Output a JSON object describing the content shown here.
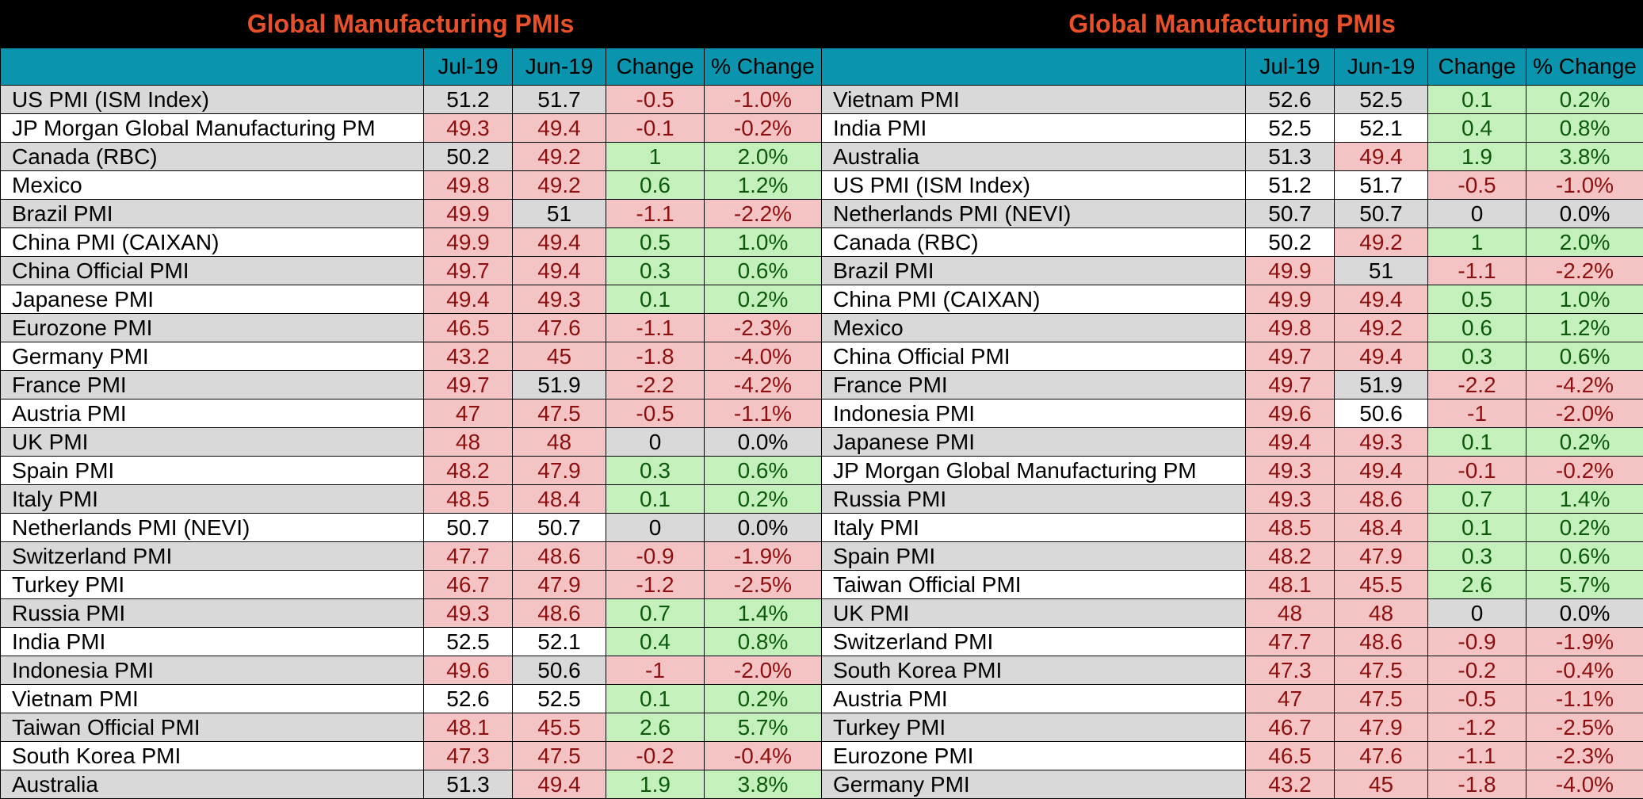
{
  "colors": {
    "title_text": "#e8502a",
    "header_bg": "#0a94ad",
    "negative": "#f4c4c4",
    "positive": "#c4f0bc"
  },
  "chart_data": [
    {
      "type": "table",
      "title": "Global Manufacturing PMIs",
      "columns": [
        "",
        "Jul-19",
        "Jun-19",
        "Change",
        "% Change"
      ],
      "rows": [
        {
          "name": "US PMI (ISM Index)",
          "jul": "51.2",
          "jun": "51.7",
          "chg": "-0.5",
          "pct": "-1.0%",
          "c": [
            "gry",
            "gry",
            "red",
            "red"
          ]
        },
        {
          "name": "JP Morgan Global Manufacturing PM",
          "jul": "49.3",
          "jun": "49.4",
          "chg": "-0.1",
          "pct": "-0.2%",
          "c": [
            "red",
            "red",
            "red",
            "red"
          ]
        },
        {
          "name": "Canada (RBC)",
          "jul": "50.2",
          "jun": "49.2",
          "chg": "1",
          "pct": "2.0%",
          "c": [
            "gry",
            "red",
            "green",
            "green"
          ]
        },
        {
          "name": "Mexico",
          "jul": "49.8",
          "jun": "49.2",
          "chg": "0.6",
          "pct": "1.2%",
          "c": [
            "red",
            "red",
            "green",
            "green"
          ]
        },
        {
          "name": "Brazil PMI",
          "jul": "49.9",
          "jun": "51",
          "chg": "-1.1",
          "pct": "-2.2%",
          "c": [
            "red",
            "gry",
            "red",
            "red"
          ]
        },
        {
          "name": "China PMI (CAIXAN)",
          "jul": "49.9",
          "jun": "49.4",
          "chg": "0.5",
          "pct": "1.0%",
          "c": [
            "red",
            "red",
            "green",
            "green"
          ]
        },
        {
          "name": "China Official PMI",
          "jul": "49.7",
          "jun": "49.4",
          "chg": "0.3",
          "pct": "0.6%",
          "c": [
            "red",
            "red",
            "green",
            "green"
          ]
        },
        {
          "name": "Japanese PMI",
          "jul": "49.4",
          "jun": "49.3",
          "chg": "0.1",
          "pct": "0.2%",
          "c": [
            "red",
            "red",
            "green",
            "green"
          ]
        },
        {
          "name": "Eurozone PMI",
          "jul": "46.5",
          "jun": "47.6",
          "chg": "-1.1",
          "pct": "-2.3%",
          "c": [
            "red",
            "red",
            "red",
            "red"
          ]
        },
        {
          "name": "Germany PMI",
          "jul": "43.2",
          "jun": "45",
          "chg": "-1.8",
          "pct": "-4.0%",
          "c": [
            "red",
            "red",
            "red",
            "red"
          ]
        },
        {
          "name": "France PMI",
          "jul": "49.7",
          "jun": "51.9",
          "chg": "-2.2",
          "pct": "-4.2%",
          "c": [
            "red",
            "gry",
            "red",
            "red"
          ]
        },
        {
          "name": "Austria PMI",
          "jul": "47",
          "jun": "47.5",
          "chg": "-0.5",
          "pct": "-1.1%",
          "c": [
            "red",
            "red",
            "red",
            "red"
          ]
        },
        {
          "name": "UK PMI",
          "jul": "48",
          "jun": "48",
          "chg": "0",
          "pct": "0.0%",
          "c": [
            "red",
            "red",
            "gry",
            "gry"
          ]
        },
        {
          "name": "Spain PMI",
          "jul": "48.2",
          "jun": "47.9",
          "chg": "0.3",
          "pct": "0.6%",
          "c": [
            "red",
            "red",
            "green",
            "green"
          ]
        },
        {
          "name": "Italy PMI",
          "jul": "48.5",
          "jun": "48.4",
          "chg": "0.1",
          "pct": "0.2%",
          "c": [
            "red",
            "red",
            "green",
            "green"
          ]
        },
        {
          "name": "Netherlands PMI (NEVI)",
          "jul": "50.7",
          "jun": "50.7",
          "chg": "0",
          "pct": "0.0%",
          "c": [
            "wht",
            "wht",
            "gry",
            "gry"
          ]
        },
        {
          "name": "Switzerland PMI",
          "jul": "47.7",
          "jun": "48.6",
          "chg": "-0.9",
          "pct": "-1.9%",
          "c": [
            "red",
            "red",
            "red",
            "red"
          ]
        },
        {
          "name": "Turkey PMI",
          "jul": "46.7",
          "jun": "47.9",
          "chg": "-1.2",
          "pct": "-2.5%",
          "c": [
            "red",
            "red",
            "red",
            "red"
          ]
        },
        {
          "name": "Russia PMI",
          "jul": "49.3",
          "jun": "48.6",
          "chg": "0.7",
          "pct": "1.4%",
          "c": [
            "red",
            "red",
            "green",
            "green"
          ]
        },
        {
          "name": "India PMI",
          "jul": "52.5",
          "jun": "52.1",
          "chg": "0.4",
          "pct": "0.8%",
          "c": [
            "wht",
            "wht",
            "green",
            "green"
          ]
        },
        {
          "name": "Indonesia PMI",
          "jul": "49.6",
          "jun": "50.6",
          "chg": "-1",
          "pct": "-2.0%",
          "c": [
            "red",
            "gry",
            "red",
            "red"
          ]
        },
        {
          "name": "Vietnam PMI",
          "jul": "52.6",
          "jun": "52.5",
          "chg": "0.1",
          "pct": "0.2%",
          "c": [
            "wht",
            "wht",
            "green",
            "green"
          ]
        },
        {
          "name": "Taiwan Official PMI",
          "jul": "48.1",
          "jun": "45.5",
          "chg": "2.6",
          "pct": "5.7%",
          "c": [
            "red",
            "red",
            "green",
            "green"
          ]
        },
        {
          "name": "South Korea PMI",
          "jul": "47.3",
          "jun": "47.5",
          "chg": "-0.2",
          "pct": "-0.4%",
          "c": [
            "red",
            "red",
            "red",
            "red"
          ]
        },
        {
          "name": "Australia",
          "jul": "51.3",
          "jun": "49.4",
          "chg": "1.9",
          "pct": "3.8%",
          "c": [
            "gry",
            "red",
            "green",
            "green"
          ]
        }
      ]
    },
    {
      "type": "table",
      "title": "Global Manufacturing PMIs",
      "columns": [
        "",
        "Jul-19",
        "Jun-19",
        "Change",
        "% Change"
      ],
      "rows": [
        {
          "name": "Vietnam PMI",
          "jul": "52.6",
          "jun": "52.5",
          "chg": "0.1",
          "pct": "0.2%",
          "c": [
            "gry",
            "gry",
            "green",
            "green"
          ]
        },
        {
          "name": "India PMI",
          "jul": "52.5",
          "jun": "52.1",
          "chg": "0.4",
          "pct": "0.8%",
          "c": [
            "wht",
            "wht",
            "green",
            "green"
          ]
        },
        {
          "name": "Australia",
          "jul": "51.3",
          "jun": "49.4",
          "chg": "1.9",
          "pct": "3.8%",
          "c": [
            "gry",
            "red",
            "green",
            "green"
          ]
        },
        {
          "name": "US PMI (ISM Index)",
          "jul": "51.2",
          "jun": "51.7",
          "chg": "-0.5",
          "pct": "-1.0%",
          "c": [
            "wht",
            "wht",
            "red",
            "red"
          ]
        },
        {
          "name": "Netherlands PMI (NEVI)",
          "jul": "50.7",
          "jun": "50.7",
          "chg": "0",
          "pct": "0.0%",
          "c": [
            "gry",
            "gry",
            "gry",
            "gry"
          ]
        },
        {
          "name": "Canada (RBC)",
          "jul": "50.2",
          "jun": "49.2",
          "chg": "1",
          "pct": "2.0%",
          "c": [
            "wht",
            "red",
            "green",
            "green"
          ]
        },
        {
          "name": "Brazil PMI",
          "jul": "49.9",
          "jun": "51",
          "chg": "-1.1",
          "pct": "-2.2%",
          "c": [
            "red",
            "gry",
            "red",
            "red"
          ]
        },
        {
          "name": "China PMI (CAIXAN)",
          "jul": "49.9",
          "jun": "49.4",
          "chg": "0.5",
          "pct": "1.0%",
          "c": [
            "red",
            "red",
            "green",
            "green"
          ]
        },
        {
          "name": "Mexico",
          "jul": "49.8",
          "jun": "49.2",
          "chg": "0.6",
          "pct": "1.2%",
          "c": [
            "red",
            "red",
            "green",
            "green"
          ]
        },
        {
          "name": "China Official PMI",
          "jul": "49.7",
          "jun": "49.4",
          "chg": "0.3",
          "pct": "0.6%",
          "c": [
            "red",
            "red",
            "green",
            "green"
          ]
        },
        {
          "name": "France PMI",
          "jul": "49.7",
          "jun": "51.9",
          "chg": "-2.2",
          "pct": "-4.2%",
          "c": [
            "red",
            "gry",
            "red",
            "red"
          ]
        },
        {
          "name": "Indonesia PMI",
          "jul": "49.6",
          "jun": "50.6",
          "chg": "-1",
          "pct": "-2.0%",
          "c": [
            "red",
            "wht",
            "red",
            "red"
          ]
        },
        {
          "name": "Japanese PMI",
          "jul": "49.4",
          "jun": "49.3",
          "chg": "0.1",
          "pct": "0.2%",
          "c": [
            "red",
            "red",
            "green",
            "green"
          ]
        },
        {
          "name": "JP Morgan Global Manufacturing PM",
          "jul": "49.3",
          "jun": "49.4",
          "chg": "-0.1",
          "pct": "-0.2%",
          "c": [
            "red",
            "red",
            "red",
            "red"
          ]
        },
        {
          "name": "Russia PMI",
          "jul": "49.3",
          "jun": "48.6",
          "chg": "0.7",
          "pct": "1.4%",
          "c": [
            "red",
            "red",
            "green",
            "green"
          ]
        },
        {
          "name": "Italy PMI",
          "jul": "48.5",
          "jun": "48.4",
          "chg": "0.1",
          "pct": "0.2%",
          "c": [
            "red",
            "red",
            "green",
            "green"
          ]
        },
        {
          "name": "Spain PMI",
          "jul": "48.2",
          "jun": "47.9",
          "chg": "0.3",
          "pct": "0.6%",
          "c": [
            "red",
            "red",
            "green",
            "green"
          ]
        },
        {
          "name": "Taiwan Official PMI",
          "jul": "48.1",
          "jun": "45.5",
          "chg": "2.6",
          "pct": "5.7%",
          "c": [
            "red",
            "red",
            "green",
            "green"
          ]
        },
        {
          "name": "UK PMI",
          "jul": "48",
          "jun": "48",
          "chg": "0",
          "pct": "0.0%",
          "c": [
            "red",
            "red",
            "gry",
            "gry"
          ]
        },
        {
          "name": "Switzerland PMI",
          "jul": "47.7",
          "jun": "48.6",
          "chg": "-0.9",
          "pct": "-1.9%",
          "c": [
            "red",
            "red",
            "red",
            "red"
          ]
        },
        {
          "name": "South Korea PMI",
          "jul": "47.3",
          "jun": "47.5",
          "chg": "-0.2",
          "pct": "-0.4%",
          "c": [
            "red",
            "red",
            "red",
            "red"
          ]
        },
        {
          "name": "Austria PMI",
          "jul": "47",
          "jun": "47.5",
          "chg": "-0.5",
          "pct": "-1.1%",
          "c": [
            "red",
            "red",
            "red",
            "red"
          ]
        },
        {
          "name": "Turkey PMI",
          "jul": "46.7",
          "jun": "47.9",
          "chg": "-1.2",
          "pct": "-2.5%",
          "c": [
            "red",
            "red",
            "red",
            "red"
          ]
        },
        {
          "name": "Eurozone PMI",
          "jul": "46.5",
          "jun": "47.6",
          "chg": "-1.1",
          "pct": "-2.3%",
          "c": [
            "red",
            "red",
            "red",
            "red"
          ]
        },
        {
          "name": "Germany PMI",
          "jul": "43.2",
          "jun": "45",
          "chg": "-1.8",
          "pct": "-4.0%",
          "c": [
            "red",
            "red",
            "red",
            "red"
          ]
        }
      ]
    }
  ]
}
